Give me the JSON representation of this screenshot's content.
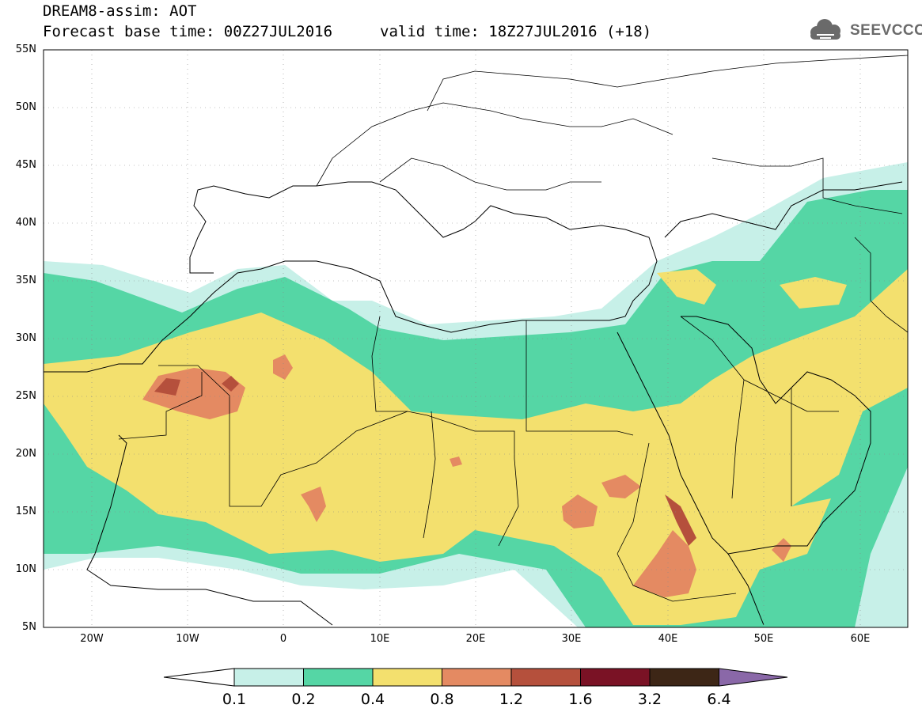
{
  "header": {
    "line1": "DREAM8-assim: AOT",
    "line2": "Forecast base time: 00Z27JUL2016",
    "valid": "valid time: 18Z27JUL2016 (+18)",
    "logo_text": "SEEVCCC"
  },
  "map": {
    "lat_labels": [
      "55N",
      "50N",
      "45N",
      "40N",
      "35N",
      "30N",
      "25N",
      "20N",
      "15N",
      "10N",
      "5N"
    ],
    "lon_labels": [
      "20W",
      "10W",
      "0",
      "10E",
      "20E",
      "30E",
      "40E",
      "50E",
      "60E"
    ],
    "lat_range": [
      5,
      55
    ],
    "lon_range": [
      -25,
      65
    ],
    "grid": "dotted"
  },
  "colorbar": {
    "levels": [
      "0.1",
      "0.2",
      "0.4",
      "0.8",
      "1.2",
      "1.6",
      "3.2",
      "6.4"
    ],
    "colors": [
      "#c7f0e8",
      "#55d6a5",
      "#f3e06e",
      "#e48a62",
      "#b5503c",
      "#7a1225",
      "#3d2616",
      "#8a68a8"
    ]
  }
}
